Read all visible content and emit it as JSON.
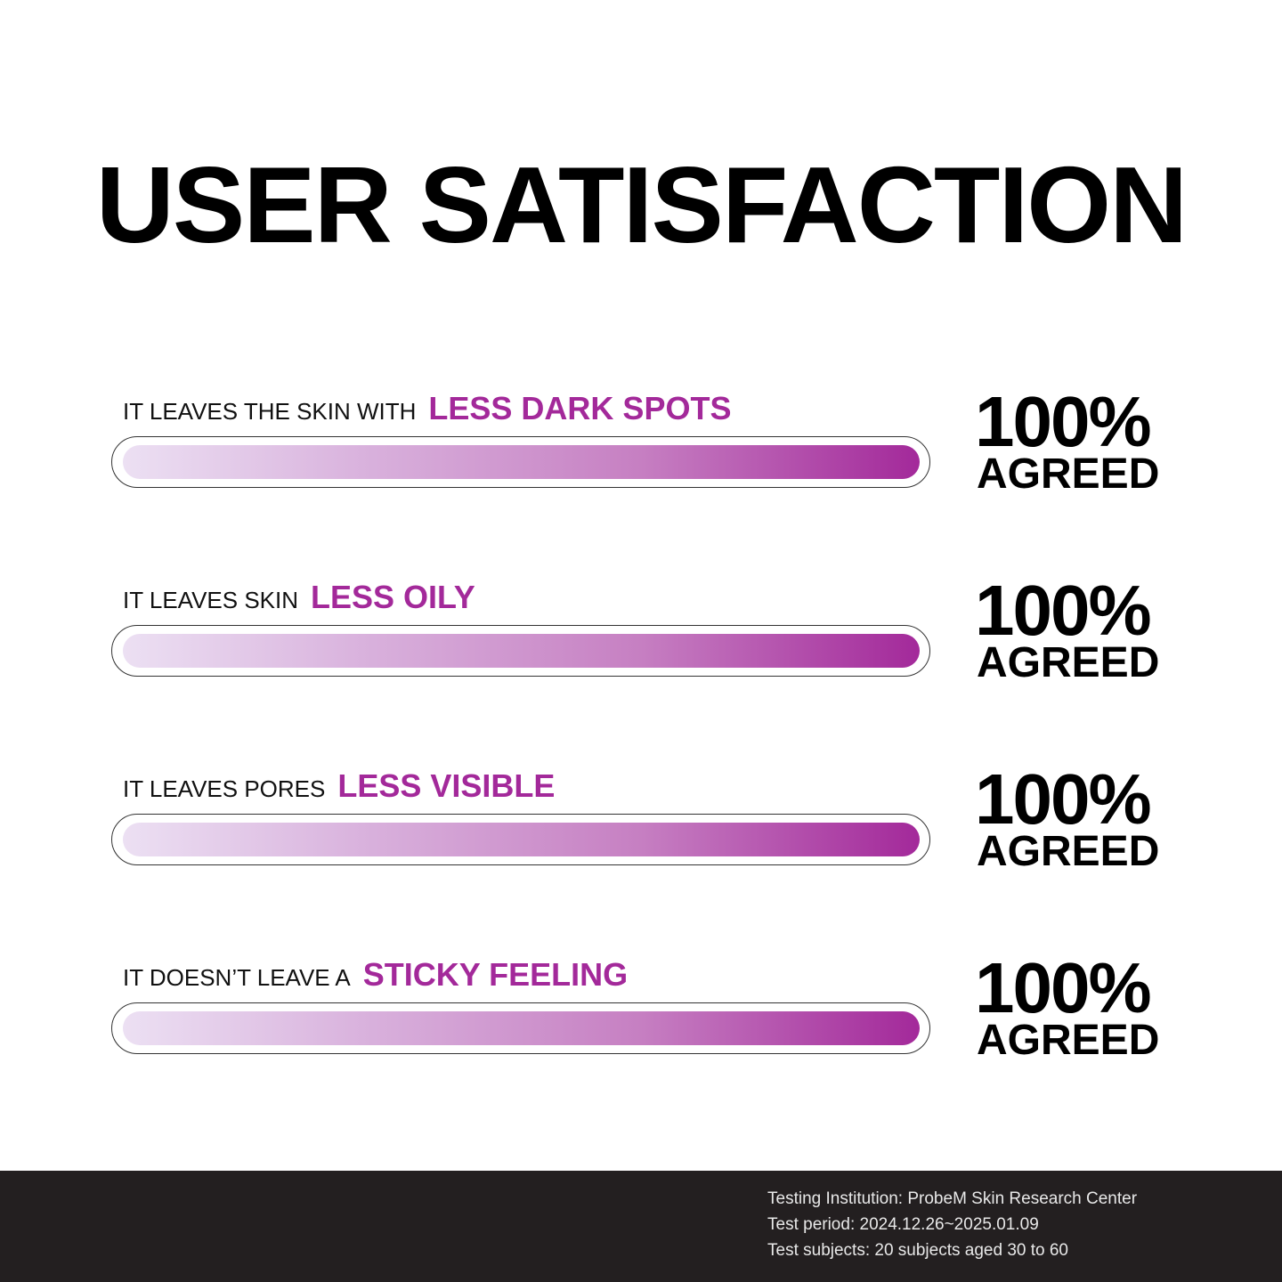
{
  "chart_data": {
    "type": "bar",
    "title": "USER SATISFACTION",
    "xlim": [
      0,
      100
    ],
    "colors": {
      "bar_start": "#ece0f3",
      "bar_end": "#a3299a",
      "highlight": "#a3299a"
    },
    "items": [
      {
        "prefix": "IT LEAVES THE SKIN WITH",
        "highlight": "LESS DARK SPOTS",
        "value": 100,
        "value_label": "100%",
        "suffix": "AGREED"
      },
      {
        "prefix": "IT LEAVES SKIN",
        "highlight": "LESS OILY",
        "value": 100,
        "value_label": "100%",
        "suffix": "AGREED"
      },
      {
        "prefix": "IT LEAVES PORES",
        "highlight": "LESS VISIBLE",
        "value": 100,
        "value_label": "100%",
        "suffix": "AGREED"
      },
      {
        "prefix": "IT DOESN’T LEAVE A",
        "highlight": "STICKY FEELING",
        "value": 100,
        "value_label": "100%",
        "suffix": "AGREED"
      }
    ]
  },
  "footer": {
    "lines": [
      "Testing Institution: ProbeM Skin Research Center",
      "Test period: 2024.12.26~2025.01.09",
      "Test subjects: 20 subjects aged 30 to 60"
    ]
  }
}
